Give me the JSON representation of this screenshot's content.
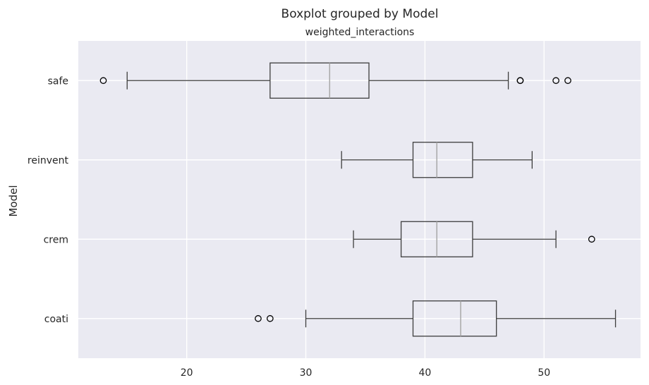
{
  "chart_data": {
    "type": "boxplot",
    "orientation": "horizontal",
    "title": "Boxplot grouped by Model",
    "subtitle": "weighted_interactions",
    "ylabel": "Model",
    "xlabel": "",
    "xlim": [
      10.9,
      58.1
    ],
    "xticks": [
      20,
      30,
      40,
      50
    ],
    "grid": true,
    "categories": [
      "safe",
      "reinvent",
      "crem",
      "coati"
    ],
    "boxes": [
      {
        "name": "safe",
        "whisker_low": 15,
        "q1": 27,
        "median": 32,
        "q3": 35.3,
        "whisker_high": 47,
        "outliers": [
          13,
          48,
          48,
          51,
          52
        ]
      },
      {
        "name": "reinvent",
        "whisker_low": 33,
        "q1": 39,
        "median": 41,
        "q3": 44,
        "whisker_high": 49,
        "outliers": []
      },
      {
        "name": "crem",
        "whisker_low": 34,
        "q1": 38,
        "median": 41,
        "q3": 44,
        "whisker_high": 51,
        "outliers": [
          54
        ]
      },
      {
        "name": "coati",
        "whisker_low": 30,
        "q1": 39,
        "median": 43,
        "q3": 46,
        "whisker_high": 56,
        "outliers": [
          26,
          27
        ]
      }
    ],
    "colors": {
      "background": "#eaeaf2",
      "grid": "#ffffff",
      "box": "#3d3d3d",
      "median": "#a8a8a8",
      "text": "#262626"
    }
  }
}
